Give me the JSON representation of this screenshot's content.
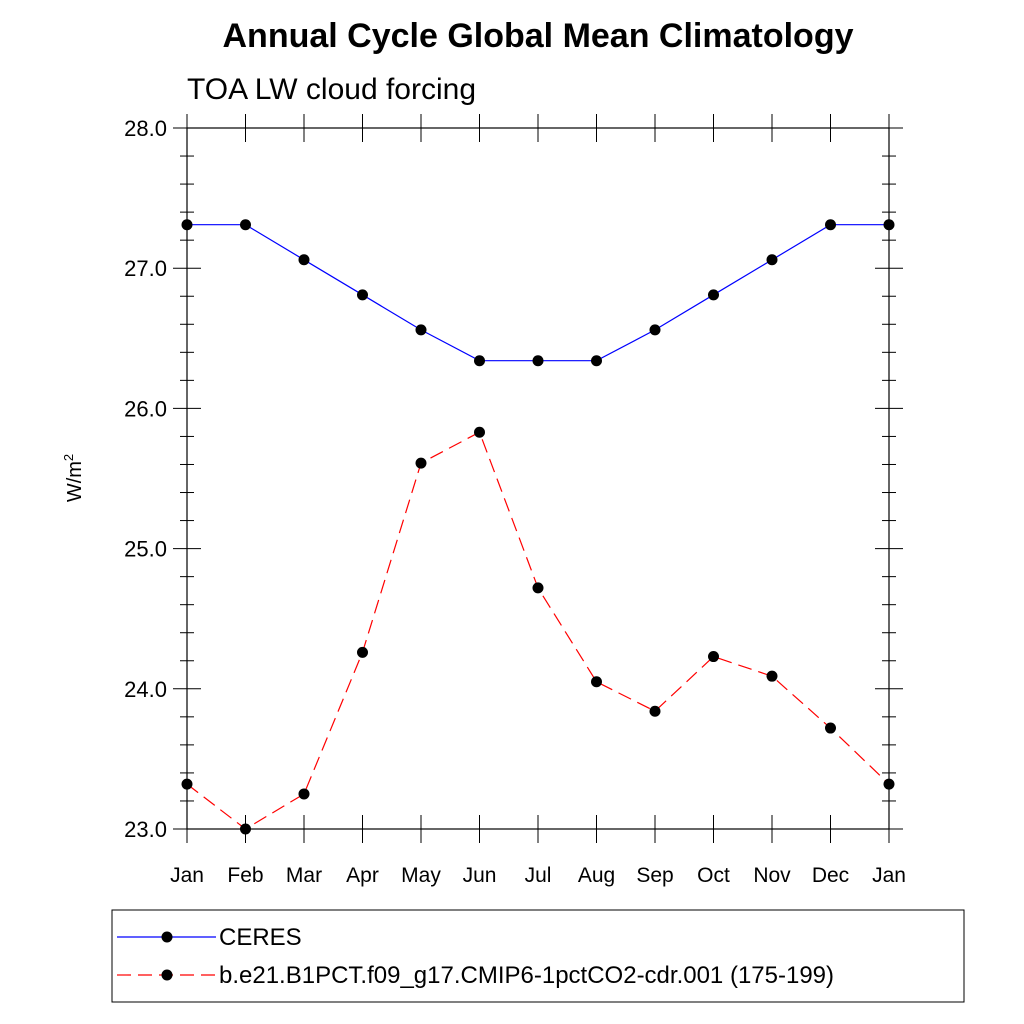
{
  "chart_data": {
    "type": "line",
    "title": "Annual Cycle Global Mean Climatology",
    "subtitle": "TOA LW cloud forcing",
    "ylabel": "W/m",
    "ylabel_superscript": "2",
    "xlabel": "",
    "categories": [
      "Jan",
      "Feb",
      "Mar",
      "Apr",
      "May",
      "Jun",
      "Jul",
      "Aug",
      "Sep",
      "Oct",
      "Nov",
      "Dec",
      "Jan"
    ],
    "ylim": [
      23.0,
      28.0
    ],
    "yticks": [
      23.0,
      24.0,
      25.0,
      26.0,
      27.0,
      28.0
    ],
    "ytick_labels": [
      "23.0",
      "24.0",
      "25.0",
      "26.0",
      "27.0",
      "28.0"
    ],
    "grid": false,
    "legend_position": "bottom",
    "series": [
      {
        "name": "CERES",
        "color": "#0000ff",
        "dash": "solid",
        "values": [
          27.31,
          27.31,
          27.06,
          26.81,
          26.56,
          26.34,
          26.34,
          26.34,
          26.56,
          26.81,
          27.06,
          27.31,
          27.31
        ]
      },
      {
        "name": "b.e21.B1PCT.f09_g17.CMIP6-1pctCO2-cdr.001 (175-199)",
        "color": "#ff0000",
        "dash": "dashed",
        "values": [
          23.32,
          23.0,
          23.25,
          24.26,
          25.61,
          25.83,
          24.72,
          24.05,
          23.84,
          24.23,
          24.09,
          23.72,
          23.32
        ]
      }
    ]
  }
}
